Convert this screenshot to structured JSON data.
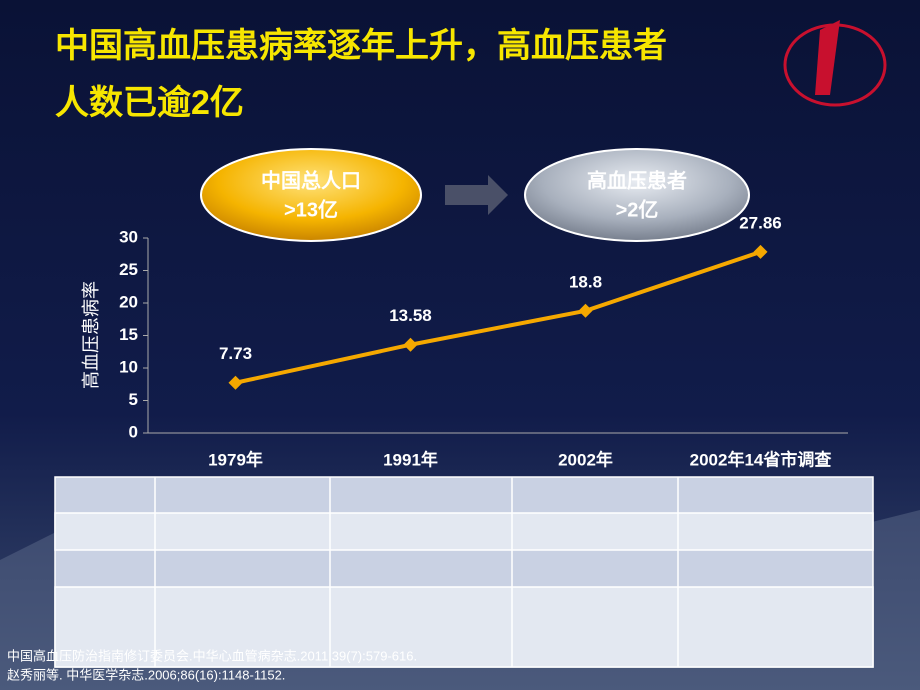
{
  "slide": {
    "title_lines": [
      "中国高血压患病率逐年上升，高血压患者",
      "人数已逾2亿"
    ],
    "bubbles": [
      {
        "line1": "中国总人口",
        "line2": ">13亿"
      },
      {
        "line1": "高血压患者",
        "line2": ">2亿"
      }
    ],
    "references": [
      "中国高血压防治指南修订委员会.中华心血管病杂志.2011;39(7):579-616.",
      "赵秀丽等. 中华医学杂志.2006;86(16):1148-1152."
    ]
  },
  "chart_data": {
    "type": "line",
    "ylabel": "高血压患病率",
    "categories": [
      "1979年",
      "1991年",
      "2002年",
      "2002年14省市调查"
    ],
    "values": [
      7.73,
      13.58,
      18.8,
      27.86
    ],
    "color": "#f5a800",
    "ylim": [
      0,
      30
    ],
    "yticks": [
      0,
      5,
      10,
      15,
      20,
      25,
      30
    ]
  }
}
